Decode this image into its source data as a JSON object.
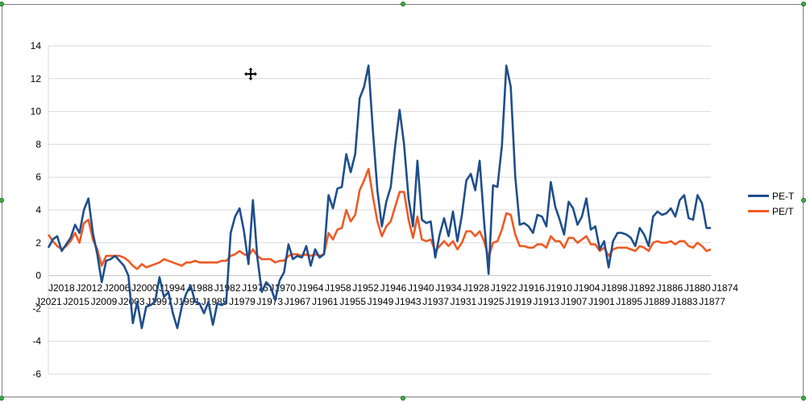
{
  "chart_data": {
    "type": "line",
    "y_ticks": [
      "14",
      "12",
      "10",
      "8",
      "6",
      "4",
      "2",
      "0",
      "-2",
      "-4",
      "-6"
    ],
    "ylim": [
      -6,
      14
    ],
    "grid": true,
    "legend_position": "right",
    "x_labels_row1": [
      "J2018",
      "J2012",
      "J2006",
      "J2000",
      "J1994",
      "J1988",
      "J1982",
      "J1976",
      "J1970",
      "J1964",
      "J1958",
      "J1952",
      "J1946",
      "J1940",
      "J1934",
      "J1928",
      "J1922",
      "J1916",
      "J1910",
      "J1904",
      "J1898",
      "J1892",
      "J1886",
      "J1880",
      "J1874"
    ],
    "x_labels_row2": [
      "J2021",
      "J2015",
      "J2009",
      "J2003",
      "J1997",
      "J1991",
      "J1985",
      "J1979",
      "J1973",
      "J1967",
      "J1961",
      "J1955",
      "J1949",
      "J1943",
      "J1937",
      "J1931",
      "J1925",
      "J1919",
      "J1913",
      "J1907",
      "J1901",
      "J1895",
      "J1889",
      "J1883",
      "J1877"
    ],
    "series": [
      {
        "name": "PE-T",
        "color": "#1f4e8c",
        "values": [
          1.7,
          2.2,
          2.4,
          1.5,
          1.9,
          2.3,
          3.1,
          2.6,
          4.0,
          4.7,
          2.6,
          1.3,
          -0.4,
          0.9,
          1.0,
          1.2,
          0.9,
          0.6,
          0.0,
          -2.9,
          -1.6,
          -3.2,
          -1.9,
          -1.8,
          -1.6,
          -0.1,
          -1.3,
          -1.0,
          -2.3,
          -3.2,
          -1.9,
          -1.1,
          -0.6,
          -1.6,
          -1.7,
          -2.3,
          -1.6,
          -3.0,
          -1.7,
          -1.8,
          -1.6,
          2.6,
          3.6,
          4.1,
          2.7,
          0.7,
          4.6,
          1.1,
          -1.0,
          -0.4,
          -0.7,
          -1.5,
          -0.3,
          0.2,
          1.9,
          1.0,
          1.2,
          1.1,
          1.8,
          0.6,
          1.6,
          1.1,
          1.3,
          4.9,
          4.1,
          5.3,
          5.4,
          7.4,
          6.3,
          7.4,
          10.8,
          11.5,
          12.8,
          8.8,
          5.2,
          3.0,
          4.5,
          5.4,
          7.9,
          10.1,
          8.0,
          4.7,
          3.0,
          7.0,
          3.4,
          3.2,
          3.3,
          1.1,
          2.5,
          3.5,
          2.4,
          3.9,
          2.1,
          3.7,
          5.8,
          6.2,
          5.2,
          7.0,
          3.3,
          0.1,
          5.5,
          5.4,
          7.9,
          12.8,
          11.5,
          6.0,
          3.1,
          3.2,
          3.0,
          2.6,
          3.7,
          3.6,
          3.0,
          5.7,
          4.2,
          3.4,
          2.5,
          4.5,
          4.1,
          3.1,
          3.6,
          4.7,
          2.8,
          3.0,
          1.6,
          2.1,
          0.5,
          2.1,
          2.6,
          2.6,
          2.5,
          2.3,
          1.8,
          2.9,
          2.5,
          1.8,
          3.6,
          3.9,
          3.7,
          3.8,
          4.1,
          3.6,
          4.6,
          4.9,
          3.5,
          3.4,
          4.9,
          4.4,
          2.9,
          2.9
        ]
      },
      {
        "name": "PE/T",
        "color": "#f05a24",
        "values": [
          2.5,
          2.1,
          1.8,
          1.6,
          1.8,
          2.1,
          2.6,
          2.0,
          3.2,
          3.4,
          2.2,
          1.6,
          0.6,
          1.2,
          1.2,
          1.2,
          1.2,
          1.1,
          0.9,
          0.6,
          0.4,
          0.7,
          0.5,
          0.6,
          0.7,
          0.8,
          1.0,
          0.9,
          0.8,
          0.7,
          0.6,
          0.8,
          0.8,
          0.9,
          0.8,
          0.8,
          0.8,
          0.8,
          0.8,
          0.9,
          0.9,
          1.2,
          1.3,
          1.5,
          1.3,
          1.2,
          1.6,
          1.2,
          1.0,
          1.0,
          1.0,
          0.8,
          0.9,
          0.9,
          1.2,
          1.3,
          1.3,
          1.2,
          1.3,
          1.2,
          1.3,
          1.2,
          1.3,
          2.6,
          2.2,
          2.8,
          2.9,
          4.0,
          3.3,
          3.7,
          5.2,
          5.8,
          6.5,
          4.8,
          3.3,
          2.4,
          3.0,
          3.3,
          4.2,
          5.1,
          5.1,
          3.4,
          2.3,
          3.6,
          2.2,
          2.1,
          2.2,
          1.5,
          1.8,
          2.1,
          1.8,
          2.1,
          1.6,
          2.0,
          2.7,
          2.7,
          2.4,
          2.7,
          2.1,
          1.1,
          2.0,
          2.1,
          2.8,
          3.8,
          3.7,
          2.5,
          1.8,
          1.8,
          1.7,
          1.7,
          1.9,
          1.9,
          1.7,
          2.4,
          2.1,
          2.1,
          1.7,
          2.3,
          2.3,
          2.0,
          2.2,
          2.4,
          1.9,
          1.9,
          1.5,
          1.7,
          1.2,
          1.6,
          1.7,
          1.7,
          1.7,
          1.6,
          1.5,
          1.8,
          1.7,
          1.5,
          2.0,
          2.1,
          2.0,
          2.0,
          2.1,
          1.9,
          2.1,
          2.1,
          1.8,
          1.7,
          2.0,
          1.8,
          1.5,
          1.6
        ]
      }
    ]
  }
}
